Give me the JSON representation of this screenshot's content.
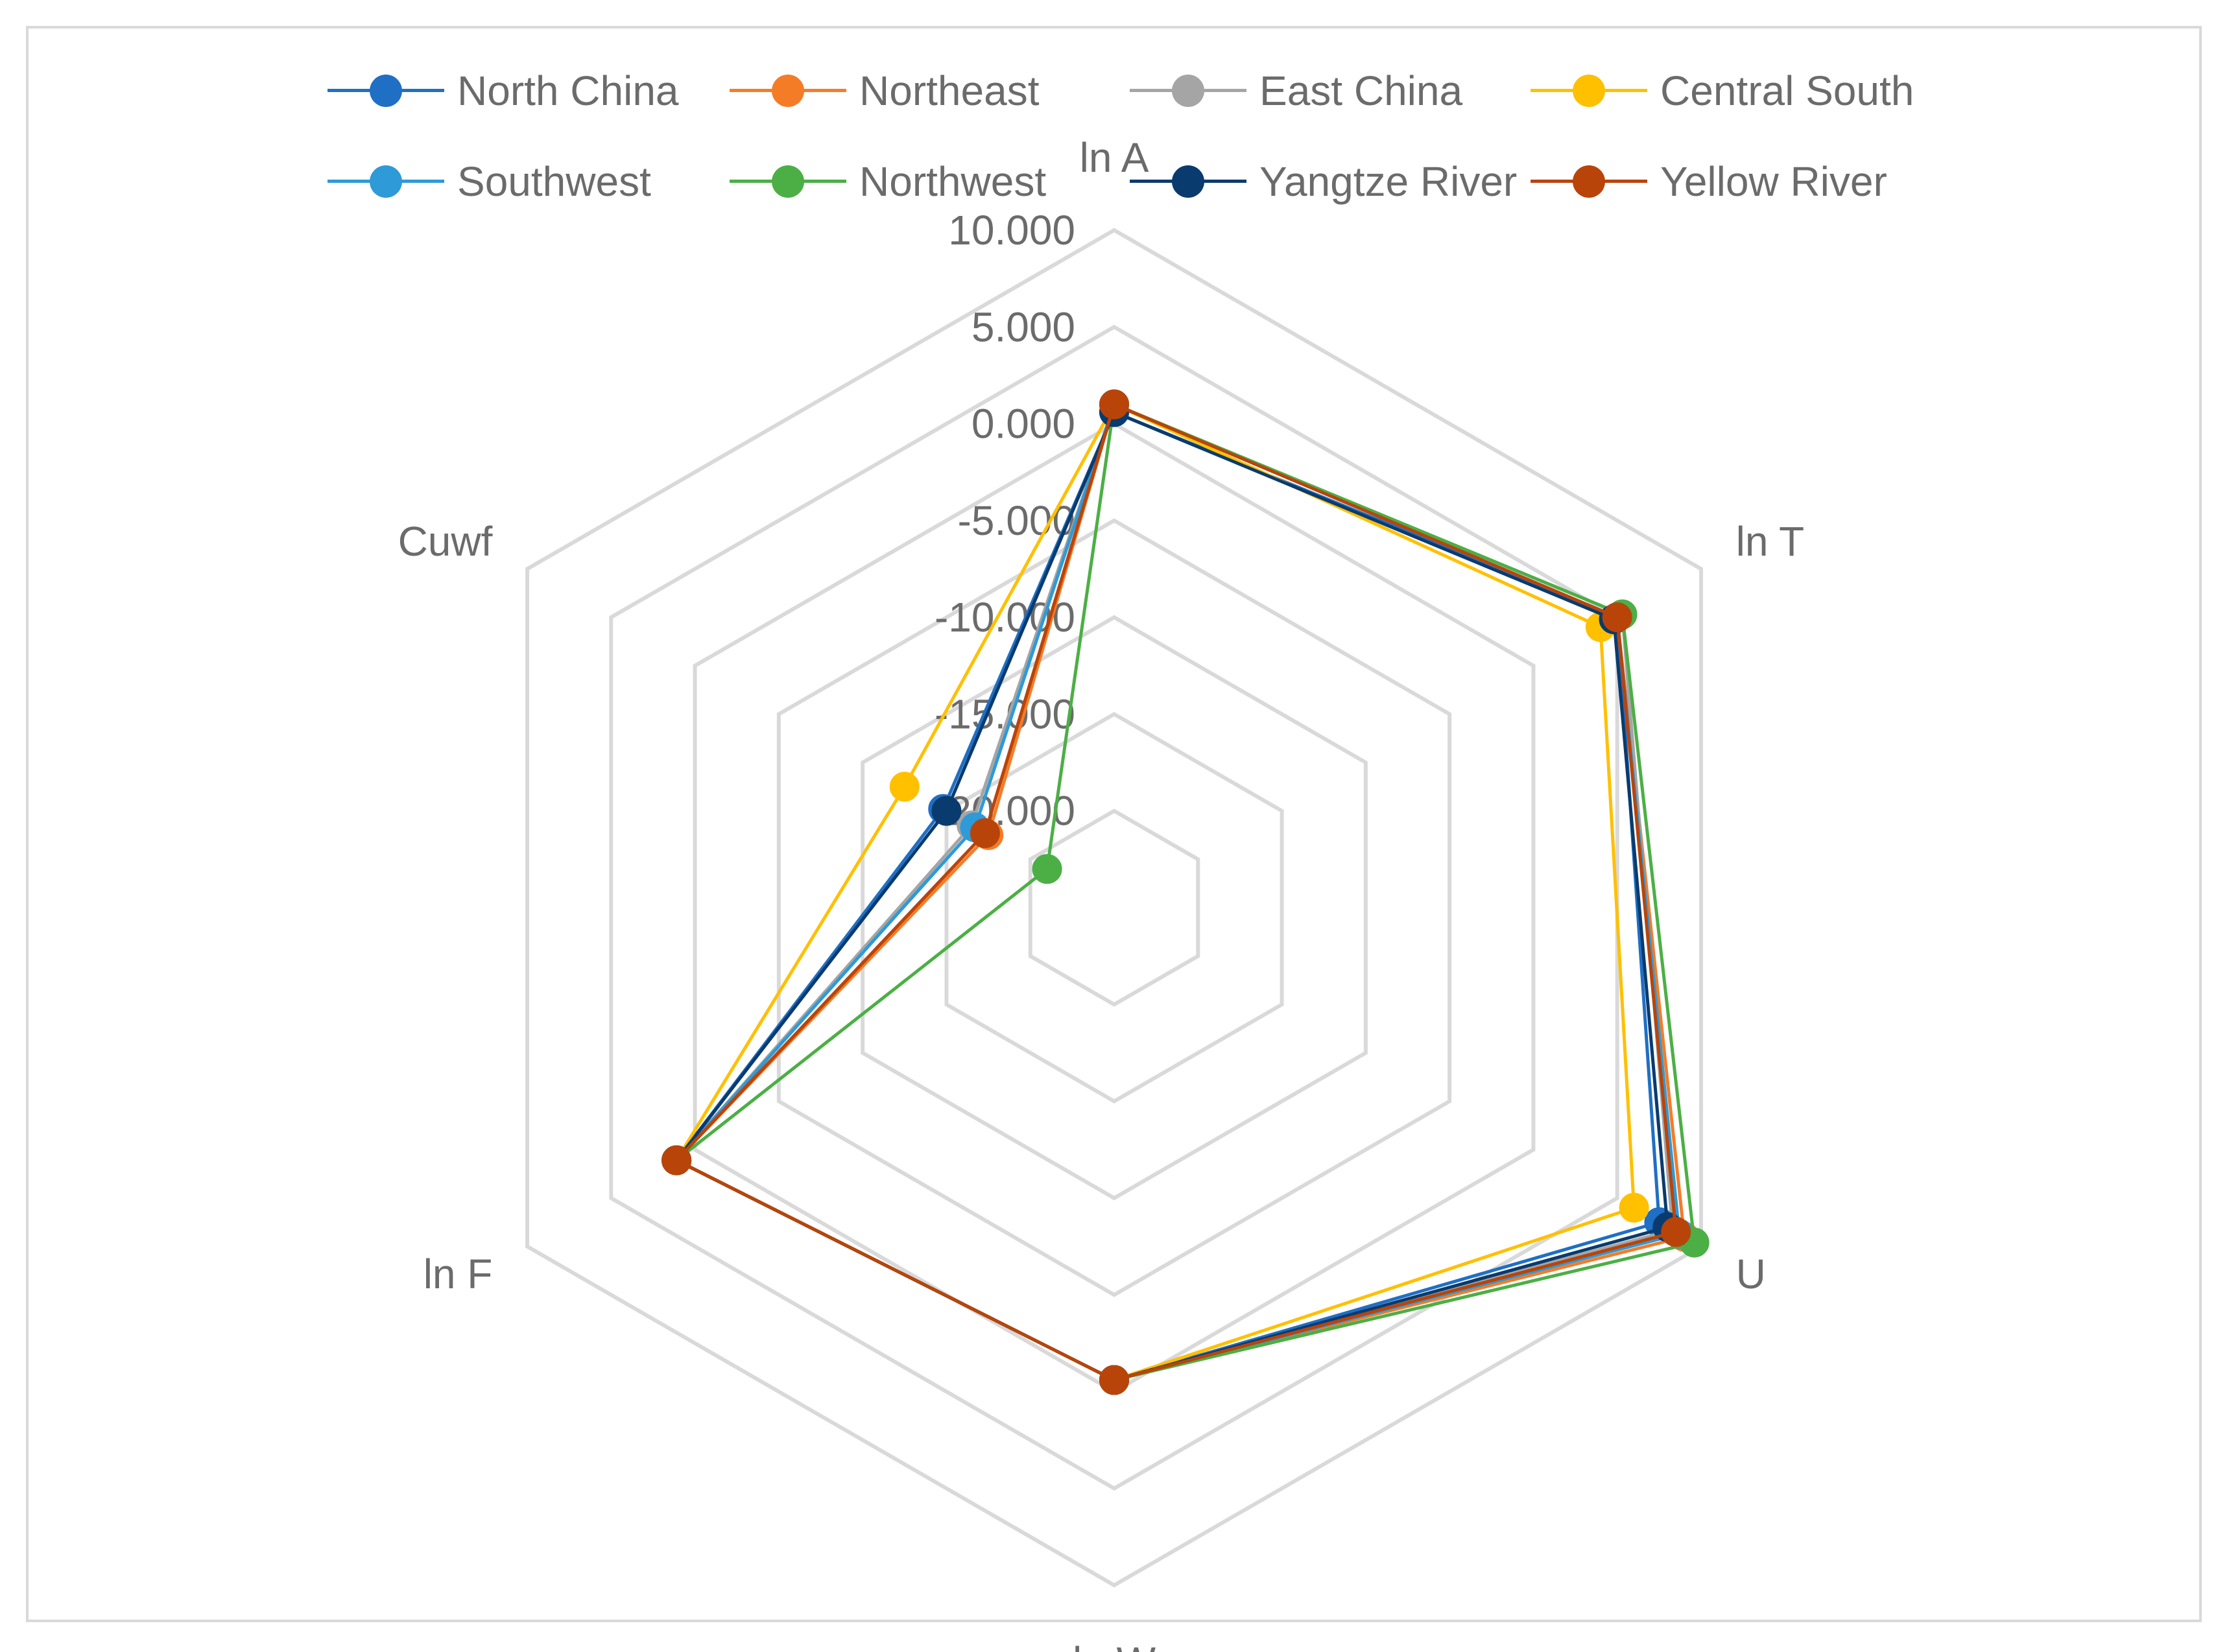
{
  "chart_data": {
    "type": "radar",
    "axes": [
      "ln A",
      "ln T",
      "U",
      "ln W",
      "ln F",
      "Cuwf"
    ],
    "scale": {
      "min": -25,
      "max": 10,
      "step": 5
    },
    "tick_labels": [
      "10.000",
      "5.000",
      "0.000",
      "-5.000",
      "-10.000",
      "-15.000",
      "-20.000"
    ],
    "tick_values": [
      10,
      5,
      0,
      -5,
      -10,
      -15,
      -20
    ],
    "grid": true,
    "legend_position": "top",
    "series": [
      {
        "name": "North China",
        "color": "#1f6fc5",
        "values": [
          0.6,
          5.0,
          7.5,
          -0.6,
          1.1,
          -14.8
        ]
      },
      {
        "name": "Northeast",
        "color": "#f57c27",
        "values": [
          1.0,
          5.0,
          9.0,
          -0.6,
          1.1,
          -17.5
        ]
      },
      {
        "name": "East China",
        "color": "#a5a5a5",
        "values": [
          1.0,
          5.3,
          8.3,
          -0.6,
          1.1,
          -16.5
        ]
      },
      {
        "name": "Central South",
        "color": "#ffc000",
        "values": [
          1.0,
          4.0,
          6.0,
          -0.6,
          1.1,
          -12.5
        ]
      },
      {
        "name": "Southwest",
        "color": "#2e9ad8",
        "values": [
          1.0,
          5.0,
          8.7,
          -0.6,
          1.1,
          -16.7
        ]
      },
      {
        "name": "Northwest",
        "color": "#4caf45",
        "values": [
          1.0,
          5.3,
          9.6,
          -0.6,
          1.1,
          -21.0
        ]
      },
      {
        "name": "Yangtze River",
        "color": "#0a3b6e",
        "values": [
          0.6,
          4.8,
          8.0,
          -0.6,
          1.1,
          -15.0
        ]
      },
      {
        "name": "Yellow River",
        "color": "#b9440a",
        "values": [
          1.0,
          5.0,
          8.5,
          -0.6,
          1.1,
          -17.3
        ]
      }
    ]
  }
}
